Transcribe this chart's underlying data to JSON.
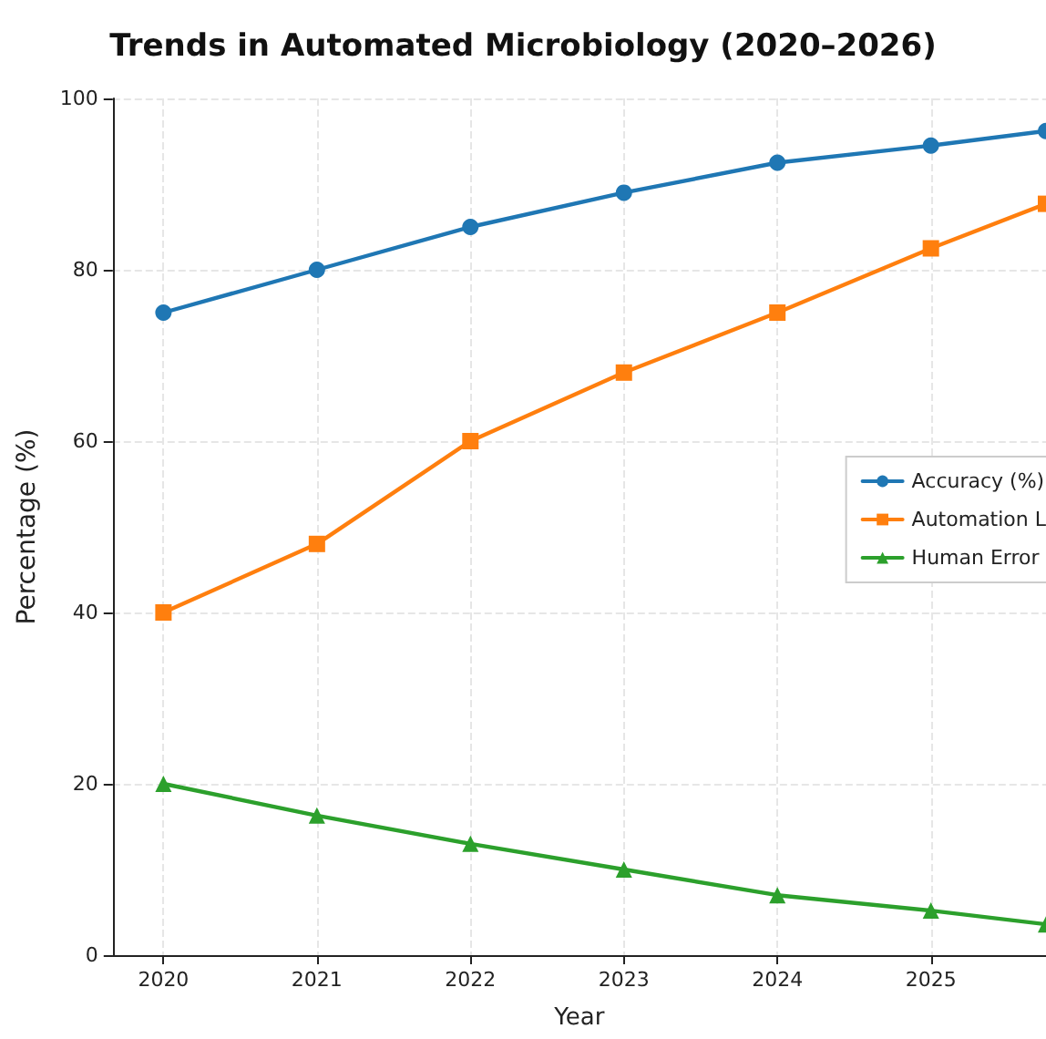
{
  "chart_data": {
    "type": "line",
    "title": "Trends in Automated Microbiology (2020–2026)",
    "xlabel": "Year",
    "ylabel": "Percentage (%)",
    "x": [
      2020,
      2021,
      2022,
      2023,
      2024,
      2025,
      2025.75
    ],
    "xlim": [
      2019.67,
      2025.75
    ],
    "xticks": [
      2020,
      2021,
      2022,
      2023,
      2024,
      2025
    ],
    "ylim": [
      0,
      100
    ],
    "yticks": [
      0,
      20,
      40,
      60,
      80,
      100
    ],
    "grid": true,
    "legend": "right",
    "line_style": "solid",
    "series": [
      {
        "name": "Accuracy (%)",
        "color": "#1f77b4",
        "marker": "circle",
        "values": [
          75,
          80,
          85,
          89,
          92.5,
          94.5,
          96.2
        ]
      },
      {
        "name": "Automation L",
        "color": "#ff7f0e",
        "marker": "square",
        "values": [
          40,
          48,
          60,
          68,
          75,
          82.5,
          87.7
        ]
      },
      {
        "name": "Human Error",
        "color": "#2ca02c",
        "marker": "triangle",
        "values": [
          20,
          16.3,
          13,
          10,
          7,
          5.2,
          3.6
        ]
      }
    ]
  }
}
